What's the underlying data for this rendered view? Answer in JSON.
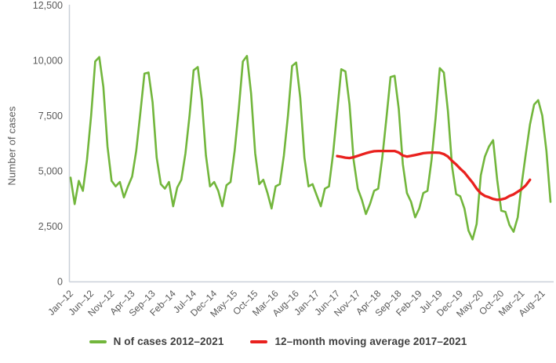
{
  "colors": {
    "cases_line": "#72b63c",
    "moving_average_line": "#e9211e",
    "axis_line": "#c9cfd8",
    "tick_text": "#595959",
    "legend_text": "#3f3f3f",
    "page_bg": "#ffffff"
  },
  "chart_data": {
    "type": "line",
    "title": "",
    "xlabel": "",
    "ylabel": "Number of cases",
    "ylim": [
      0,
      12500
    ],
    "grid": "off",
    "legend_position": "bottom",
    "y_ticks": [
      {
        "value": 0,
        "label": "0"
      },
      {
        "value": 2500,
        "label": "2,500"
      },
      {
        "value": 5000,
        "label": "5,000"
      },
      {
        "value": 7500,
        "label": "7,500"
      },
      {
        "value": 10000,
        "label": "10,000"
      },
      {
        "value": 12500,
        "label": "12,500"
      }
    ],
    "x_frequency": "monthly",
    "n_points": 118,
    "x_tick_every_n_months": 5,
    "x_tick_labels": [
      "Jan–12",
      "Jun–12",
      "Nov–12",
      "Apr–13",
      "Sep–13",
      "Feb–14",
      "Jul–14",
      "Dec–14",
      "May–15",
      "Oct–15",
      "Mar–16",
      "Aug–16",
      "Jan–17",
      "Jun–17",
      "Nov–17",
      "Apr–18",
      "Sep–18",
      "Feb–19",
      "Jul–19",
      "Dec–19",
      "May–20",
      "Oct–20",
      "Mar–21",
      "Aug–21"
    ],
    "series": [
      {
        "name": "N of cases 2012–2021",
        "color": "#72b63c",
        "start_index": 0,
        "stroke_width": 2.6,
        "values": [
          4700,
          3500,
          4550,
          4100,
          5500,
          7500,
          9950,
          10150,
          8800,
          6100,
          4550,
          4300,
          4500,
          3800,
          4300,
          4750,
          5900,
          7600,
          9400,
          9450,
          8100,
          5600,
          4400,
          4200,
          4500,
          3400,
          4250,
          4600,
          5800,
          7500,
          9550,
          9700,
          8200,
          5700,
          4300,
          4500,
          4100,
          3400,
          4350,
          4500,
          5900,
          7800,
          9950,
          10200,
          8500,
          5800,
          4400,
          4600,
          4000,
          3300,
          4300,
          4400,
          5700,
          7500,
          9750,
          9900,
          8300,
          5600,
          4300,
          4400,
          3900,
          3400,
          4200,
          4300,
          5800,
          7700,
          9600,
          9500,
          8000,
          5500,
          4200,
          3700,
          3050,
          3500,
          4100,
          4200,
          5600,
          7400,
          9250,
          9300,
          7800,
          5300,
          4000,
          3600,
          2900,
          3300,
          4000,
          4100,
          5500,
          7400,
          9650,
          9450,
          7700,
          5200,
          3950,
          3850,
          3300,
          2300,
          1900,
          2600,
          4800,
          5650,
          6100,
          6390,
          4600,
          3200,
          3150,
          2550,
          2250,
          2900,
          4450,
          5800,
          7100,
          8000,
          8200,
          7500,
          5900,
          3600
        ]
      },
      {
        "name": "12–month moving average 2017–2021",
        "color": "#e9211e",
        "start_index": 65,
        "stroke_width": 3.3,
        "values": [
          5670,
          5640,
          5600,
          5580,
          5620,
          5680,
          5740,
          5800,
          5850,
          5890,
          5900,
          5900,
          5900,
          5900,
          5900,
          5830,
          5700,
          5650,
          5680,
          5720,
          5760,
          5800,
          5820,
          5830,
          5830,
          5820,
          5760,
          5650,
          5450,
          5290,
          5100,
          4930,
          4700,
          4470,
          4200,
          3990,
          3870,
          3810,
          3730,
          3690,
          3710,
          3760,
          3870,
          3940,
          4060,
          4180,
          4350,
          4600
        ]
      }
    ]
  }
}
